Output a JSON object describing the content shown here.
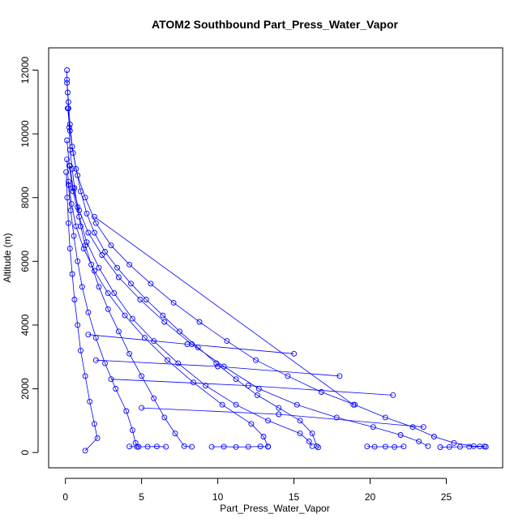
{
  "chart_data": {
    "type": "scatter",
    "title": "ATOM2 Southbound Part_Press_Water_Vapor",
    "xlabel": "Part_Press_Water_Vapor",
    "ylabel": "Altitude (m)",
    "xlim": [
      -1.1,
      28.7
    ],
    "ylim": [
      -480,
      12700
    ],
    "x_ticks": [
      0,
      5,
      10,
      15,
      20,
      25
    ],
    "y_ticks": [
      0,
      2000,
      4000,
      6000,
      8000,
      10000,
      12000
    ],
    "grid": false,
    "legend": "none",
    "color": "#0000ff",
    "series": [
      {
        "values": [
          [
            0.1,
            12000
          ],
          [
            0.1,
            11700
          ],
          [
            0.15,
            11300
          ],
          [
            0.2,
            10800
          ],
          [
            0.25,
            10200
          ],
          [
            0.3,
            9500
          ],
          [
            0.45,
            8900
          ],
          [
            0.6,
            8300
          ],
          [
            0.8,
            7700
          ],
          [
            1.0,
            7100
          ],
          [
            1.3,
            6500
          ],
          [
            1.7,
            5900
          ],
          [
            2.2,
            5200
          ],
          [
            2.8,
            4500
          ],
          [
            3.5,
            3800
          ],
          [
            4.2,
            3100
          ],
          [
            5.0,
            2400
          ],
          [
            5.8,
            1700
          ],
          [
            6.5,
            1100
          ],
          [
            7.2,
            600
          ],
          [
            7.8,
            200
          ],
          [
            8.3,
            180
          ]
        ]
      },
      {
        "values": [
          [
            0.1,
            11600
          ],
          [
            0.2,
            11000
          ],
          [
            0.3,
            10300
          ],
          [
            0.45,
            9600
          ],
          [
            0.7,
            8900
          ],
          [
            1.0,
            8200
          ],
          [
            1.4,
            7500
          ],
          [
            1.9,
            6900
          ],
          [
            2.6,
            6300
          ],
          [
            3.4,
            5800
          ],
          [
            4.3,
            5300
          ],
          [
            5.3,
            4800
          ],
          [
            6.4,
            4300
          ],
          [
            7.5,
            3800
          ],
          [
            8.7,
            3300
          ],
          [
            9.9,
            2800
          ],
          [
            11.2,
            2300
          ],
          [
            12.6,
            1800
          ],
          [
            14.0,
            1400
          ],
          [
            15.4,
            1000
          ],
          [
            16.2,
            600
          ],
          [
            16.5,
            200
          ],
          [
            16.6,
            160
          ]
        ]
      },
      {
        "values": [
          [
            0.15,
            10800
          ],
          [
            0.3,
            10100
          ],
          [
            0.5,
            9400
          ],
          [
            0.8,
            8700
          ],
          [
            1.3,
            8000
          ],
          [
            2.0,
            7200
          ],
          [
            3.0,
            6500
          ],
          [
            4.2,
            5900
          ],
          [
            5.6,
            5300
          ],
          [
            7.1,
            4700
          ],
          [
            8.8,
            4100
          ],
          [
            10.6,
            3500
          ],
          [
            12.5,
            2900
          ],
          [
            14.6,
            2400
          ],
          [
            16.8,
            1900
          ],
          [
            19.0,
            1500
          ],
          [
            21.0,
            1100
          ],
          [
            22.8,
            800
          ],
          [
            24.2,
            500
          ],
          [
            25.5,
            300
          ],
          [
            26.8,
            200
          ],
          [
            27.5,
            190
          ]
        ]
      },
      {
        "values": [
          [
            0.1,
            9800
          ],
          [
            0.25,
            9000
          ],
          [
            0.5,
            8200
          ],
          [
            0.9,
            7400
          ],
          [
            1.4,
            6600
          ],
          [
            2.2,
            5800
          ],
          [
            3.2,
            5000
          ],
          [
            4.4,
            4200
          ],
          [
            5.8,
            3500
          ],
          [
            7.4,
            2800
          ],
          [
            9.2,
            2100
          ],
          [
            11.2,
            1500
          ],
          [
            13.3,
            1000
          ],
          [
            15.4,
            600
          ],
          [
            16.0,
            350
          ],
          [
            16.2,
            200
          ]
        ]
      },
      {
        "values": [
          [
            0.1,
            9200
          ],
          [
            0.2,
            8400
          ],
          [
            0.35,
            7600
          ],
          [
            0.55,
            6800
          ],
          [
            0.8,
            6000
          ],
          [
            1.1,
            5200
          ],
          [
            1.5,
            4400
          ],
          [
            2.0,
            3600
          ],
          [
            2.6,
            2800
          ],
          [
            3.3,
            2000
          ],
          [
            4.0,
            1300
          ],
          [
            4.4,
            700
          ],
          [
            4.6,
            300
          ],
          [
            4.8,
            180
          ]
        ]
      },
      {
        "values": [
          [
            0.05,
            8800
          ],
          [
            0.12,
            8000
          ],
          [
            0.2,
            7200
          ],
          [
            0.3,
            6400
          ],
          [
            0.45,
            5600
          ],
          [
            0.6,
            4800
          ],
          [
            0.8,
            4000
          ],
          [
            1.0,
            3200
          ],
          [
            1.3,
            2400
          ],
          [
            1.6,
            1600
          ],
          [
            1.9,
            900
          ],
          [
            2.1,
            450
          ],
          [
            1.3,
            60
          ]
        ]
      },
      {
        "values": [
          [
            0.2,
            8500
          ],
          [
            0.4,
            7800
          ],
          [
            0.7,
            7100
          ],
          [
            1.2,
            6400
          ],
          [
            1.9,
            5700
          ],
          [
            2.8,
            5000
          ],
          [
            3.9,
            4300
          ],
          [
            5.2,
            3600
          ],
          [
            6.7,
            2900
          ],
          [
            8.4,
            2200
          ],
          [
            10.3,
            1500
          ],
          [
            12.2,
            900
          ],
          [
            13.0,
            500
          ],
          [
            13.3,
            190
          ]
        ]
      },
      {
        "values": [
          [
            0.3,
            9000
          ],
          [
            0.5,
            8300
          ],
          [
            0.9,
            7600
          ],
          [
            1.5,
            6900
          ],
          [
            2.4,
            6200
          ],
          [
            3.5,
            5500
          ],
          [
            4.9,
            4800
          ],
          [
            6.5,
            4100
          ],
          [
            8.3,
            3400
          ],
          [
            10.4,
            2700
          ],
          [
            12.7,
            2000
          ],
          [
            15.2,
            1500
          ],
          [
            17.8,
            1100
          ],
          [
            20.2,
            800
          ],
          [
            22.0,
            550
          ],
          [
            23.2,
            350
          ],
          [
            23.8,
            200
          ]
        ]
      },
      {
        "values": [
          [
            1.9,
            7400
          ],
          [
            18.9,
            1500
          ]
        ]
      },
      {
        "values": [
          [
            2.0,
            2900
          ],
          [
            10.0,
            2700
          ],
          [
            18.0,
            2400
          ]
        ]
      },
      {
        "values": [
          [
            3.0,
            2300
          ],
          [
            12.0,
            2100
          ],
          [
            21.5,
            1800
          ]
        ]
      },
      {
        "values": [
          [
            1.5,
            3700
          ],
          [
            8.0,
            3400
          ],
          [
            15.0,
            3100
          ]
        ]
      },
      {
        "values": [
          [
            5.0,
            1400
          ],
          [
            14.0,
            1200
          ],
          [
            23.5,
            800
          ]
        ]
      },
      {
        "values": [
          [
            19.8,
            190
          ],
          [
            20.3,
            180
          ],
          [
            21.0,
            185
          ],
          [
            21.6,
            175
          ],
          [
            22.2,
            190
          ]
        ]
      },
      {
        "values": [
          [
            9.6,
            180
          ],
          [
            10.4,
            185
          ],
          [
            11.2,
            175
          ],
          [
            12.0,
            180
          ],
          [
            12.8,
            190
          ],
          [
            13.3,
            180
          ]
        ]
      },
      {
        "values": [
          [
            4.2,
            190
          ],
          [
            4.7,
            180
          ],
          [
            5.4,
            185
          ],
          [
            6.0,
            190
          ],
          [
            6.6,
            180
          ]
        ]
      },
      {
        "values": [
          [
            24.6,
            170
          ],
          [
            25.2,
            175
          ],
          [
            25.9,
            180
          ],
          [
            26.5,
            185
          ],
          [
            27.2,
            190
          ],
          [
            27.6,
            180
          ]
        ]
      }
    ]
  }
}
